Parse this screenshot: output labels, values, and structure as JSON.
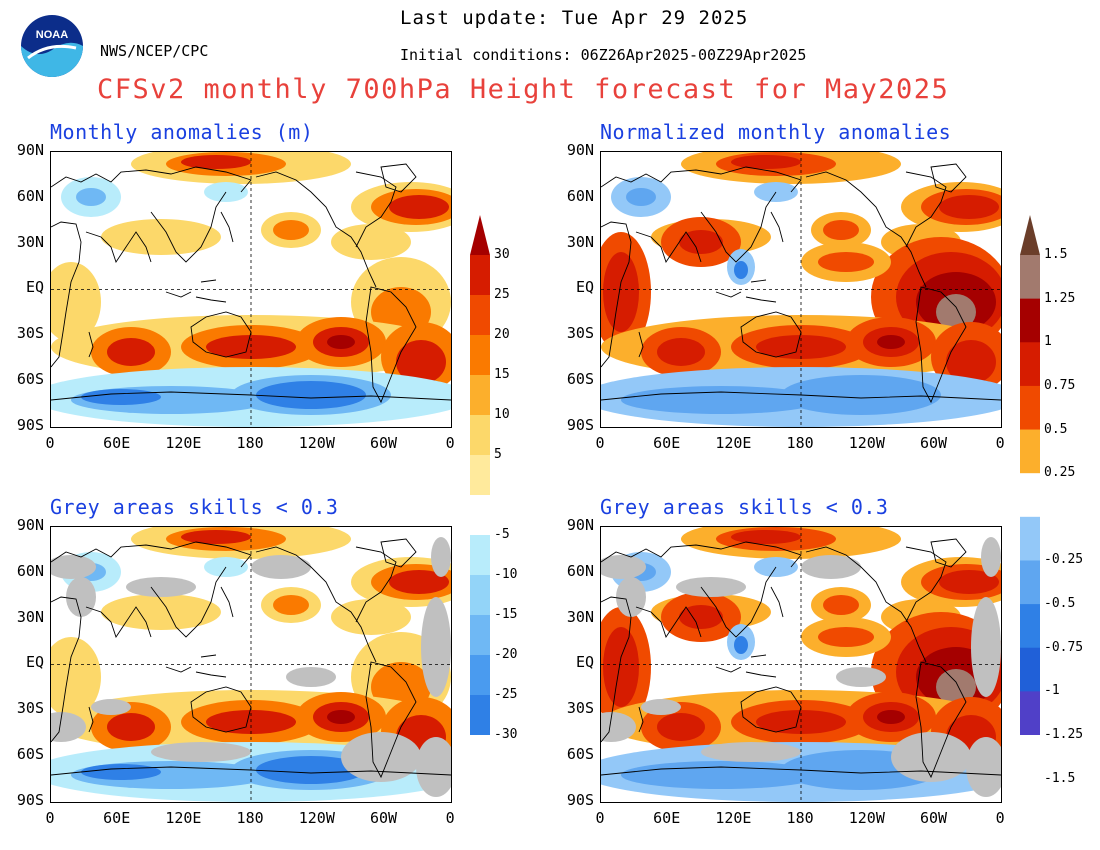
{
  "header": {
    "agency": "NWS/NCEP/CPC",
    "last_update": "Last update: Tue Apr 29 2025",
    "initial_conditions": "Initial conditions: 06Z26Apr2025-00Z29Apr2025",
    "title": "CFSv2 monthly 700hPa Height forecast for May2025",
    "logo_text": "NOAA"
  },
  "panels": {
    "top_left_title": "Monthly anomalies (m)",
    "top_right_title": "Normalized monthly anomalies",
    "bottom_left_title": "Grey areas skills < 0.3",
    "bottom_right_title": "Grey areas skills < 0.3"
  },
  "axes": {
    "lat_labels": [
      "90N",
      "60N",
      "30N",
      "EQ",
      "30S",
      "60S",
      "90S"
    ],
    "lon_labels": [
      "0",
      "60E",
      "120E",
      "180",
      "120W",
      "60W",
      "0"
    ]
  },
  "colorbar_left": {
    "labels": [
      "30",
      "25",
      "20",
      "15",
      "10",
      "5",
      "-5",
      "-10",
      "-15",
      "-20",
      "-25",
      "-30"
    ],
    "colors": [
      "#a50000",
      "#d61c00",
      "#f04a00",
      "#fa7a00",
      "#fcaf2c",
      "#fcd86a",
      "#ffea9c",
      "#ffffff",
      "#b8ecfb",
      "#93d4f8",
      "#6fb8f4",
      "#4a9bef",
      "#2f80e6",
      "#1a64d9"
    ]
  },
  "colorbar_right": {
    "labels": [
      "1.5",
      "1.25",
      "1",
      "0.75",
      "0.5",
      "0.25",
      "-0.25",
      "-0.5",
      "-0.75",
      "-1",
      "-1.25",
      "-1.5"
    ],
    "colors": [
      "#6b3e2a",
      "#a27a6e",
      "#a50000",
      "#d61c00",
      "#f04a00",
      "#fcaf2c",
      "#ffffff",
      "#93c8f8",
      "#5fa6f0",
      "#2f80e6",
      "#2060d8",
      "#5040c8",
      "#2a1aa0"
    ]
  },
  "colors": {
    "title_red": "#e8413b",
    "panel_title_blue": "#1a40e0",
    "skill_grey": "#c0c0c0"
  }
}
